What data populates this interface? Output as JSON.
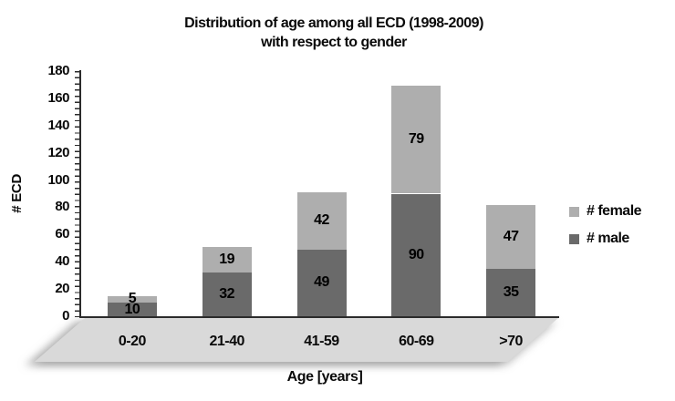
{
  "chart_data": {
    "type": "bar",
    "variant": "stacked-column",
    "title_line1": "Distribution of age among all ECD (1998-2009)",
    "title_line2": "with respect to gender",
    "xlabel": "Age [years]",
    "ylabel": "# ECD",
    "categories": [
      "0-20",
      "21-40",
      "41-59",
      "60-69",
      ">70"
    ],
    "series": [
      {
        "name": "# male",
        "color": "#6a6a6a",
        "values": [
          10,
          32,
          49,
          90,
          35
        ]
      },
      {
        "name": "# female",
        "color": "#aeaeae",
        "values": [
          5,
          19,
          42,
          79,
          47
        ]
      }
    ],
    "legend": [
      {
        "label": "# female",
        "color": "#aeaeae"
      },
      {
        "label": "# male",
        "color": "#6a6a6a"
      }
    ],
    "legend_position": "right",
    "grid": false,
    "ylim": [
      0,
      180
    ],
    "ytick_step": 20,
    "yticks": [
      0,
      20,
      40,
      60,
      80,
      100,
      120,
      140,
      160,
      180
    ],
    "floor_color": "#d9d9d9",
    "axis_color": "#2b2b2b"
  }
}
